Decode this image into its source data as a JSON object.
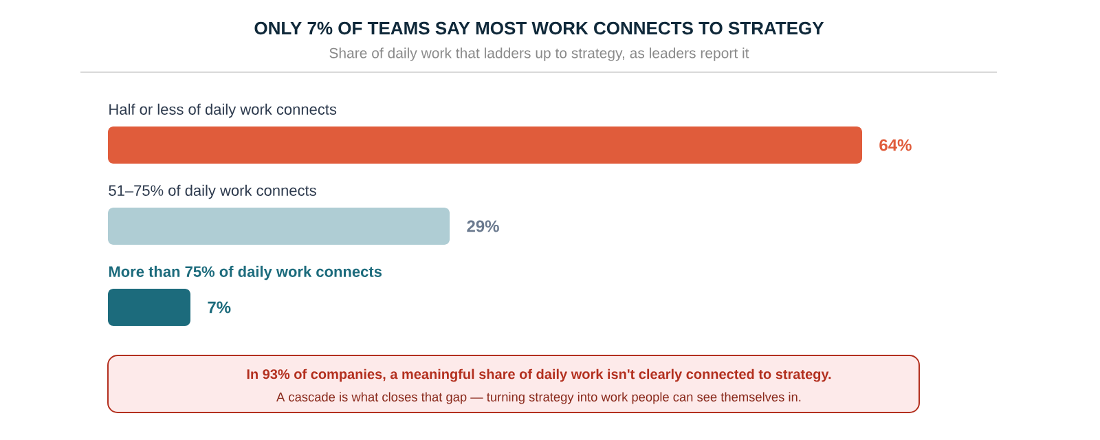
{
  "chart_data": {
    "type": "bar",
    "orientation": "horizontal",
    "title": "ONLY 7% OF TEAMS SAY MOST WORK CONNECTS TO STRATEGY",
    "subtitle": "Share of daily work that ladders up to strategy, as leaders report it",
    "categories": [
      "Half or less of daily work connects",
      "51–75% of daily work connects",
      "More than 75% of daily work connects"
    ],
    "values": [
      64,
      29,
      7
    ],
    "colors": [
      "#e05c3b",
      "#afcdd4",
      "#1c6b7c"
    ],
    "value_labels": [
      "64%",
      "29%",
      "7%"
    ],
    "tick_labels": false,
    "annotations": [
      "In 93% of companies, a meaningful share of daily work isn't clearly connected to strategy.",
      "A cascade is what closes that gap — turning strategy into work people can see themselves in."
    ]
  }
}
